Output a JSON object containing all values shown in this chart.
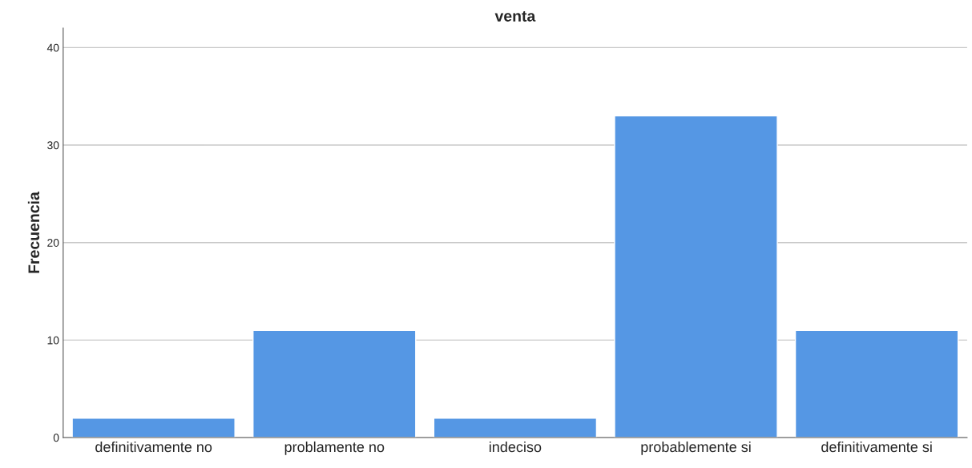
{
  "chart_data": {
    "type": "bar",
    "title": "venta",
    "ylabel": "Frecuencia",
    "categories": [
      "definitivamente no",
      "problamente no",
      "indeciso",
      "probablemente si",
      "definitivamente si"
    ],
    "values": [
      2,
      11,
      2,
      33,
      11
    ],
    "color": "#5597e4",
    "ylim": [
      0,
      42
    ],
    "yticks": [
      0,
      10,
      20,
      30,
      40
    ],
    "grid": "y"
  }
}
